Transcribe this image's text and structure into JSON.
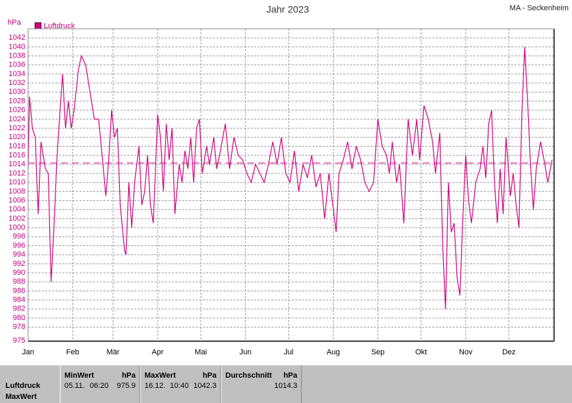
{
  "chart_data": {
    "type": "line",
    "title": "Jahr 2023",
    "station": "MA - Seckenheim",
    "y_label": "hPa",
    "xlim": [
      0,
      365
    ],
    "ylim": [
      975,
      1044
    ],
    "xticks": [
      {
        "value": 0,
        "label": "Jan"
      },
      {
        "value": 31,
        "label": "Feb"
      },
      {
        "value": 59,
        "label": "Mär"
      },
      {
        "value": 90,
        "label": "Apr"
      },
      {
        "value": 120,
        "label": "Mai"
      },
      {
        "value": 151,
        "label": "Jun"
      },
      {
        "value": 181,
        "label": "Jul"
      },
      {
        "value": 212,
        "label": "Aug"
      },
      {
        "value": 243,
        "label": "Sep"
      },
      {
        "value": 273,
        "label": "Okt"
      },
      {
        "value": 304,
        "label": "Nov"
      },
      {
        "value": 334,
        "label": "Dez"
      }
    ],
    "yticks": [
      975,
      978,
      980,
      982,
      984,
      986,
      988,
      990,
      992,
      994,
      996,
      998,
      1000,
      1002,
      1004,
      1006,
      1008,
      1010,
      1012,
      1014,
      1016,
      1018,
      1020,
      1022,
      1024,
      1026,
      1028,
      1030,
      1032,
      1034,
      1036,
      1038,
      1040,
      1042
    ],
    "grid": true,
    "series": [
      {
        "name": "Luftdruck",
        "color": "#d4007f",
        "x": [
          0,
          1,
          3,
          5,
          7,
          9,
          12,
          14,
          16,
          18,
          20,
          22,
          24,
          26,
          28,
          30,
          32,
          35,
          37,
          40,
          43,
          46,
          49,
          52,
          54,
          56,
          58,
          60,
          62,
          64,
          67,
          68,
          70,
          72,
          74,
          77,
          79,
          81,
          83,
          85,
          87,
          90,
          92,
          94,
          96,
          98,
          100,
          102,
          105,
          107,
          109,
          111,
          113,
          115,
          117,
          119,
          121,
          124,
          126,
          129,
          131,
          133,
          137,
          140,
          143,
          146,
          149,
          152,
          155,
          158,
          161,
          164,
          167,
          170,
          173,
          176,
          179,
          182,
          185,
          188,
          191,
          194,
          197,
          200,
          203,
          206,
          209,
          214,
          216,
          219,
          222,
          225,
          228,
          231,
          234,
          237,
          240,
          243,
          246,
          249,
          251,
          253,
          256,
          258,
          261,
          264,
          267,
          270,
          272,
          275,
          278,
          281,
          283,
          286,
          288,
          290,
          292,
          294,
          296,
          298,
          300,
          302,
          304,
          306,
          308,
          311,
          314,
          316,
          318,
          320,
          322,
          324,
          326,
          328,
          330,
          332,
          335,
          337,
          339,
          341,
          343,
          345,
          347,
          349,
          351,
          353,
          356,
          359,
          361,
          364
        ],
        "values": [
          1013,
          1029,
          1022,
          1020,
          1003,
          1019,
          1013,
          1012,
          988,
          1000,
          1015,
          1025,
          1034,
          1022,
          1028,
          1022,
          1026,
          1035,
          1038,
          1036,
          1030,
          1024,
          1024,
          1014,
          1007,
          1015,
          1026,
          1020,
          1022,
          1005,
          995,
          994,
          1010,
          1000,
          1010,
          1018,
          1005,
          1008,
          1016,
          1005,
          1001,
          1025,
          1020,
          1008,
          1023,
          1015,
          1022,
          1003,
          1014,
          1010,
          1017,
          1013,
          1020,
          1010,
          1022,
          1024,
          1012,
          1018,
          1014,
          1020,
          1013,
          1016,
          1023,
          1013,
          1020,
          1016,
          1015,
          1012,
          1010,
          1014,
          1012,
          1010,
          1014,
          1019,
          1014,
          1020,
          1012,
          1010,
          1017,
          1008,
          1014,
          1011,
          1016,
          1009,
          1012,
          1002,
          1012,
          999,
          1012,
          1015,
          1019,
          1013,
          1018,
          1015,
          1010,
          1008,
          1010,
          1024,
          1018,
          1016,
          1012,
          1019,
          1010,
          1014,
          1001,
          1024,
          1016,
          1024,
          1015,
          1027,
          1024,
          1019,
          1012,
          1021,
          996,
          982,
          1010,
          999,
          1001,
          989,
          985,
          1002,
          1016,
          1006,
          1001,
          1010,
          1013,
          1018,
          1011,
          1023,
          1026,
          1010,
          1001,
          1013,
          1003,
          1020,
          1007,
          1012,
          1005,
          1000,
          1025,
          1040,
          1028,
          1014,
          1004,
          1013,
          1019,
          1014,
          1010,
          1015
        ]
      }
    ]
  },
  "table": {
    "row_labels": [
      "Luftdruck",
      "MaxWert"
    ],
    "columns": [
      {
        "header": "MinWert",
        "unit": "hPa",
        "date": "05.11.",
        "time": "06:20",
        "value": 975.9
      },
      {
        "header": "MaxWert",
        "unit": "hPa",
        "date": "16.12.",
        "time": "10:40",
        "value": 1042.3
      },
      {
        "header": "Durchschnitt",
        "unit": "hPa",
        "value": 1014.3
      }
    ]
  }
}
